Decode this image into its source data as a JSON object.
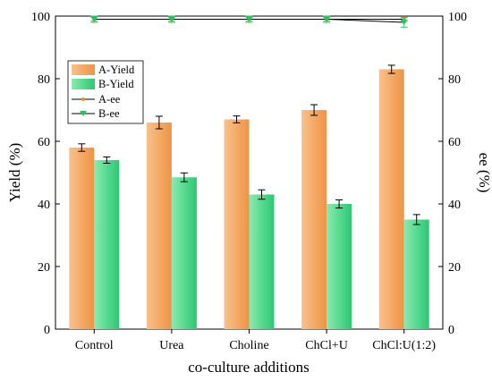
{
  "chart_data": {
    "type": "bar",
    "categories": [
      "Control",
      "Urea",
      "Choline",
      "ChCl+U",
      "ChCl:U(1:2)"
    ],
    "xlabel": "co-culture additions",
    "ylabel": "Yield (%)",
    "y2label": "ee (%)",
    "ylim": [
      0,
      100
    ],
    "y2lim": [
      0,
      100
    ],
    "yticks": [
      0,
      20,
      40,
      60,
      80,
      100
    ],
    "y2ticks": [
      0,
      20,
      40,
      60,
      80,
      100
    ],
    "grid": false,
    "legend_position": "top-left",
    "series": [
      {
        "name": "A-Yield",
        "type": "bar",
        "axis": "left",
        "values": [
          58,
          66,
          67,
          70,
          83
        ],
        "errors": [
          1.2,
          2.0,
          1.1,
          1.7,
          1.3
        ],
        "color": "#f4a862"
      },
      {
        "name": "B-Yield",
        "type": "bar",
        "axis": "left",
        "values": [
          54,
          48.5,
          43,
          40,
          35
        ],
        "errors": [
          1.0,
          1.4,
          1.5,
          1.3,
          1.6
        ],
        "color": "#4fd488"
      },
      {
        "name": "A-ee",
        "type": "line",
        "axis": "right",
        "values": [
          99,
          99,
          99,
          99,
          99
        ],
        "errors": [
          0.6,
          0.6,
          0.6,
          0.6,
          0.6
        ],
        "color": "#f08a3c"
      },
      {
        "name": "B-ee",
        "type": "line",
        "axis": "right",
        "values": [
          99,
          99,
          99,
          99,
          98
        ],
        "errors": [
          1.0,
          1.0,
          1.0,
          1.0,
          1.5
        ],
        "color": "#1ec95a"
      }
    ]
  }
}
